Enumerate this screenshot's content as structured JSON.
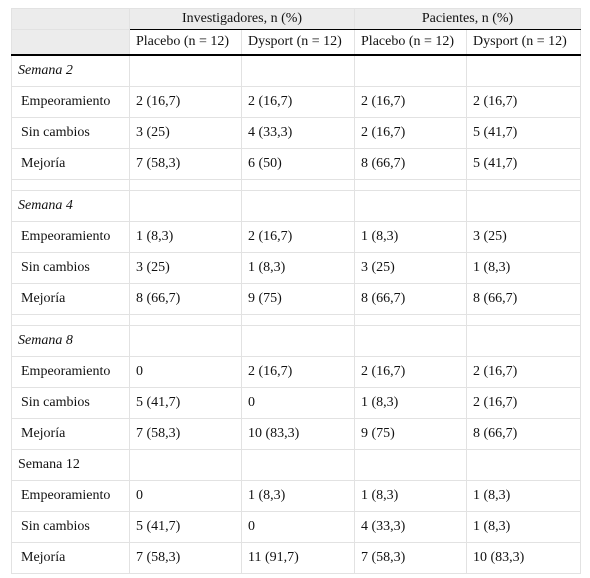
{
  "header": {
    "groups": [
      "Investigadores, n (%)",
      "Pacientes, n (%)"
    ],
    "columns": [
      "Placebo (n = 12)",
      "Dysport (n = 12)",
      "Placebo (n = 12)",
      "Dysport (n = 12)"
    ]
  },
  "sections": [
    {
      "title": "Semana 2",
      "style": "italic",
      "rows": [
        {
          "label": "Empeoramiento",
          "values": [
            "2 (16,7)",
            "2 (16,7)",
            "2 (16,7)",
            "2 (16,7)"
          ]
        },
        {
          "label": "Sin cambios",
          "values": [
            "3 (25)",
            "4 (33,3)",
            "2 (16,7)",
            "5 (41,7)"
          ]
        },
        {
          "label": "Mejoría",
          "values": [
            "7 (58,3)",
            "6 (50)",
            "8 (66,7)",
            "5 (41,7)"
          ]
        }
      ]
    },
    {
      "title": "Semana 4",
      "style": "italic",
      "rows": [
        {
          "label": "Empeoramiento",
          "values": [
            "1 (8,3)",
            "2 (16,7)",
            "1 (8,3)",
            "3 (25)"
          ]
        },
        {
          "label": "Sin cambios",
          "values": [
            "3 (25)",
            "1 (8,3)",
            "3 (25)",
            "1 (8,3)"
          ]
        },
        {
          "label": "Mejoría",
          "values": [
            "8 (66,7)",
            "9 (75)",
            "8 (66,7)",
            "8 (66,7)"
          ]
        }
      ]
    },
    {
      "title": "Semana 8",
      "style": "italic",
      "rows": [
        {
          "label": "Empeoramiento",
          "values": [
            "0",
            "2 (16,7)",
            "2 (16,7)",
            "2 (16,7)"
          ]
        },
        {
          "label": "Sin cambios",
          "values": [
            "5 (41,7)",
            "0",
            "1 (8,3)",
            "2 (16,7)"
          ]
        },
        {
          "label": "Mejoría",
          "values": [
            "7 (58,3)",
            "10 (83,3)",
            "9 (75)",
            "8 (66,7)"
          ]
        }
      ]
    },
    {
      "title": "Semana 12",
      "style": "normal",
      "rows": [
        {
          "label": "Empeoramiento",
          "values": [
            "0",
            "1 (8,3)",
            "1 (8,3)",
            "1 (8,3)"
          ]
        },
        {
          "label": "Sin cambios",
          "values": [
            "5 (41,7)",
            "0",
            "4 (33,3)",
            "1 (8,3)"
          ]
        },
        {
          "label": "Mejoría",
          "values": [
            "7 (58,3)",
            "11 (91,7)",
            "7 (58,3)",
            "10 (83,3)"
          ]
        }
      ]
    }
  ]
}
